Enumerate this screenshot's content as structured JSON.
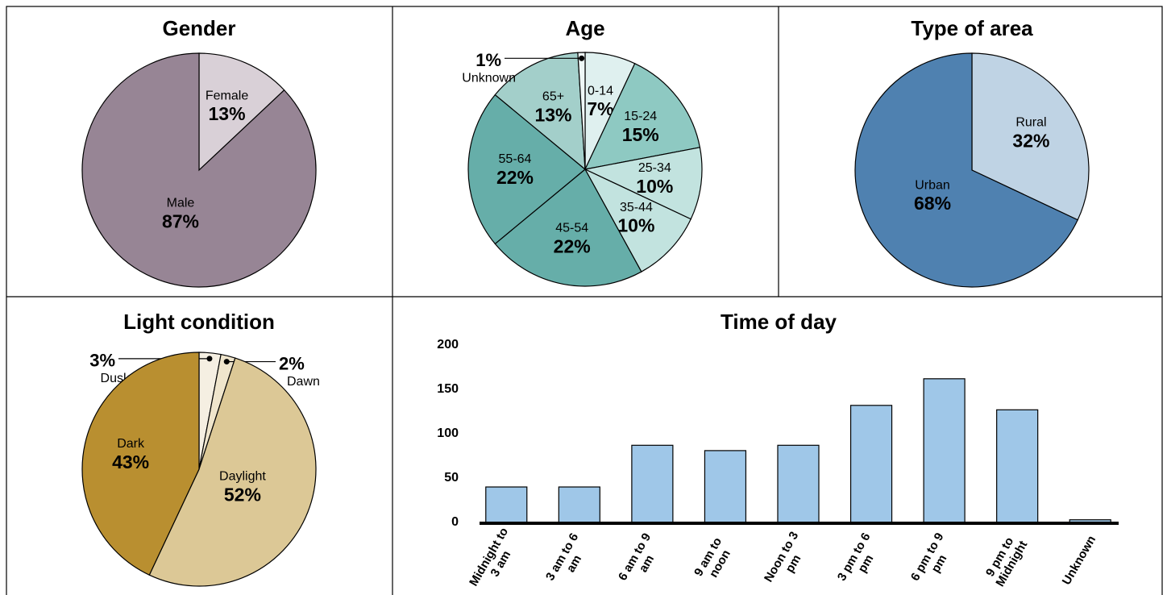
{
  "chart_data": [
    {
      "type": "pie",
      "title": "Gender",
      "categories": [
        "Female",
        "Male"
      ],
      "values": [
        13,
        87
      ],
      "value_labels": [
        "13%",
        "87%"
      ],
      "colors": [
        "#d9d0d7",
        "#978595"
      ]
    },
    {
      "type": "pie",
      "title": "Age",
      "categories": [
        "0-14",
        "15-24",
        "25-34",
        "35-44",
        "45-54",
        "55-64",
        "65+",
        "Unknown"
      ],
      "values": [
        7,
        15,
        10,
        10,
        22,
        22,
        13,
        1
      ],
      "value_labels": [
        "7%",
        "15%",
        "10%",
        "10%",
        "22%",
        "22%",
        "13%",
        "1%"
      ],
      "colors": [
        "#dff0ef",
        "#8ec9c2",
        "#c2e3df",
        "#c2e3df",
        "#66aea9",
        "#66aea9",
        "#a3cfca",
        "#eef7f6"
      ]
    },
    {
      "type": "pie",
      "title": "Type of area",
      "categories": [
        "Rural",
        "Urban"
      ],
      "values": [
        32,
        68
      ],
      "value_labels": [
        "32%",
        "68%"
      ],
      "colors": [
        "#bfd3e4",
        "#4f81b0"
      ]
    },
    {
      "type": "pie",
      "title": "Light condition",
      "categories": [
        "Dusk",
        "Dawn",
        "Daylight",
        "Dark"
      ],
      "values": [
        3,
        2,
        52,
        43
      ],
      "value_labels": [
        "3%",
        "2%",
        "52%",
        "43%"
      ],
      "colors": [
        "#f5efe2",
        "#efe5cc",
        "#dcc896",
        "#b98f30"
      ]
    },
    {
      "type": "bar",
      "title": "Time of day",
      "categories": [
        "Midnight to 3 am",
        "3 am to 6 am",
        "6 am to 9 am",
        "9 am to noon",
        "Noon to 3 pm",
        "3 pm to 6 pm",
        "6 pm to 9 pm",
        "9 pm to Midnight",
        "Unknown"
      ],
      "values": [
        40,
        40,
        87,
        81,
        87,
        132,
        162,
        127,
        3
      ],
      "color": "#9fc7e8",
      "ylim": [
        0,
        200
      ],
      "yticks": [
        0,
        50,
        100,
        150,
        200
      ],
      "grid": false
    }
  ]
}
